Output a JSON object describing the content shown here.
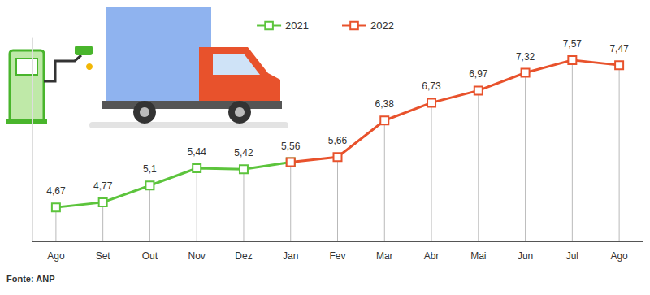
{
  "chart_data": {
    "type": "line",
    "categories": [
      "Ago",
      "Set",
      "Out",
      "Nov",
      "Dez",
      "Jan",
      "Fev",
      "Mar",
      "Abr",
      "Mai",
      "Jun",
      "Jul",
      "Ago"
    ],
    "series": [
      {
        "name": "2021",
        "color": "#5cc43c",
        "values": [
          4.67,
          4.77,
          5.1,
          5.44,
          5.42,
          5.56,
          null,
          null,
          null,
          null,
          null,
          null,
          null
        ],
        "value_labels": [
          "4,67",
          "4,77",
          "5,1",
          "5,44",
          "5,42",
          null,
          null,
          null,
          null,
          null,
          null,
          null,
          null
        ]
      },
      {
        "name": "2022",
        "color": "#e8522c",
        "values": [
          null,
          null,
          null,
          null,
          null,
          5.56,
          5.66,
          6.38,
          6.73,
          6.97,
          7.32,
          7.57,
          7.47
        ],
        "value_labels": [
          null,
          null,
          null,
          null,
          null,
          "5,56",
          "5,66",
          "6,38",
          "6,73",
          "6,97",
          "7,32",
          "7,57",
          "7,47"
        ]
      }
    ],
    "ylim": [
      4,
      8
    ],
    "marker": "square",
    "data_labels": true,
    "tick_labels": "x",
    "grid": false,
    "legend": "top",
    "annotations": [
      "Fonte: ANP"
    ]
  }
}
